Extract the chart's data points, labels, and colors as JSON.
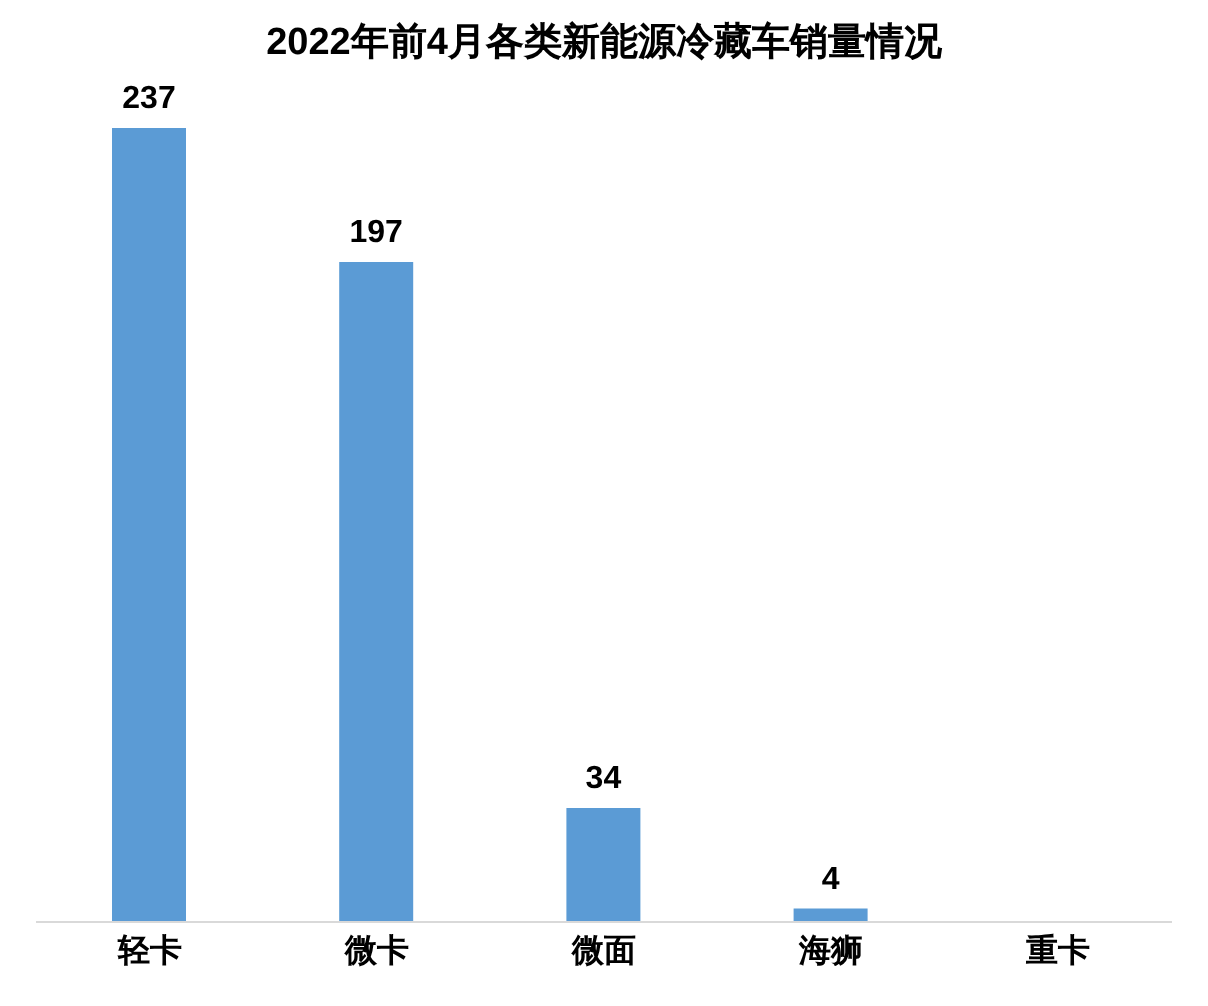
{
  "chart_data": {
    "type": "bar",
    "title": "2022年前4月各类新能源冷藏车销量情况",
    "categories": [
      "轻卡",
      "微卡",
      "微面",
      "海狮",
      "重卡"
    ],
    "values": [
      237,
      197,
      34,
      4,
      null
    ],
    "color": "#5b9bd5",
    "data_labels": true
  }
}
